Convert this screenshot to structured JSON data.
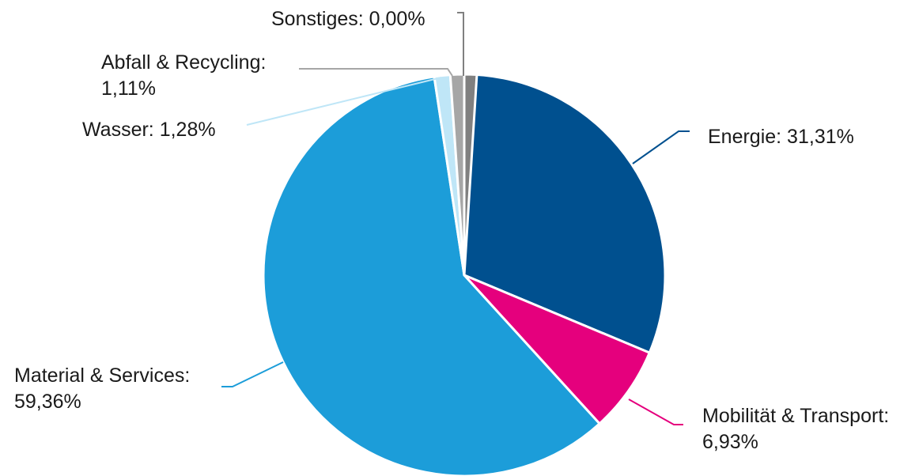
{
  "chart_data": {
    "type": "pie",
    "categories": [
      "Energie",
      "Mobilität & Transport",
      "Material & Services",
      "Wasser",
      "Abfall & Recycling",
      "Sonstiges"
    ],
    "values": [
      31.31,
      6.93,
      59.36,
      1.28,
      1.11,
      0.0
    ],
    "colors": [
      "#00508f",
      "#e5007d",
      "#1c9dd9",
      "#bfe6f7",
      "#a6a6a6",
      "#808080"
    ],
    "labels": [
      [
        "Energie: 31,31%"
      ],
      [
        "Mobilität & Transport:",
        "6,93%"
      ],
      [
        "Material & Services:",
        "59,36%"
      ],
      [
        "Wasser: 1,28%"
      ],
      [
        "Abfall & Recycling:",
        "1,11%"
      ],
      [
        "Sonstiges: 0,00%"
      ]
    ],
    "title": "",
    "legend": "none"
  }
}
